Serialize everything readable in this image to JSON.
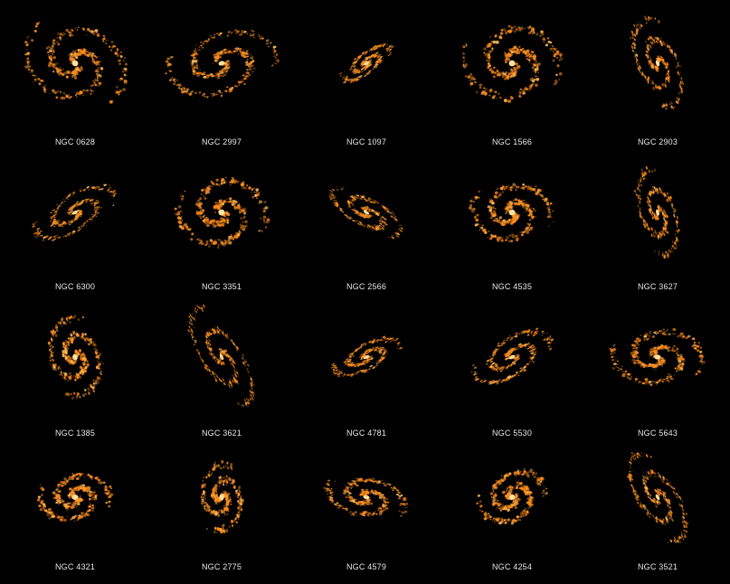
{
  "galaxies": [
    {
      "name": "NGC 0628"
    },
    {
      "name": "NGC 2997"
    },
    {
      "name": "NGC 1097"
    },
    {
      "name": "NGC 1566"
    },
    {
      "name": "NGC 2903"
    },
    {
      "name": "NGC 6300"
    },
    {
      "name": "NGC 3351"
    },
    {
      "name": "NGC 2566"
    },
    {
      "name": "NGC 4535"
    },
    {
      "name": "NGC 3627"
    },
    {
      "name": "NGC 1385"
    },
    {
      "name": "NGC 3621"
    },
    {
      "name": "NGC 4781"
    },
    {
      "name": "NGC 5530"
    },
    {
      "name": "NGC 5643"
    },
    {
      "name": "NGC 4321"
    },
    {
      "name": "NGC 2775"
    },
    {
      "name": "NGC 4579"
    },
    {
      "name": "NGC 4254"
    },
    {
      "name": "NGC 3521"
    }
  ],
  "colors": {
    "background": "#000000",
    "glow": "#ff8c1a",
    "core": "#ffe0a0",
    "label": "#e8e8e8"
  }
}
